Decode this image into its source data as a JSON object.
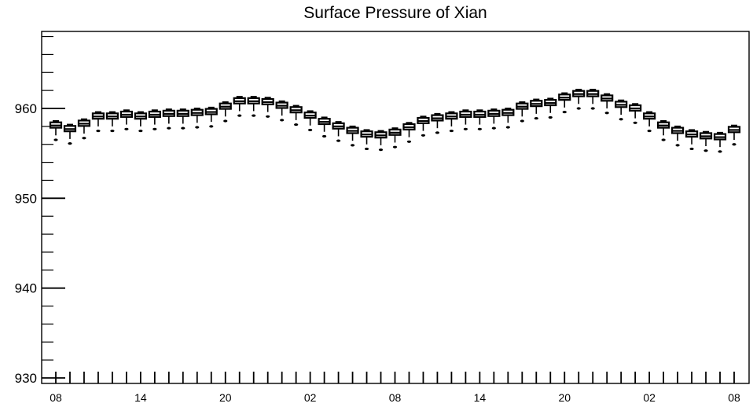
{
  "chart_data": {
    "type": "box",
    "title": "Surface Pressure of Xian",
    "xlabel": "",
    "ylabel": "",
    "ylim": [
      930,
      969
    ],
    "y_major_ticks": [
      930,
      940,
      950,
      960
    ],
    "x_tick_labels": [
      "08",
      "14",
      "20",
      "02",
      "08",
      "14",
      "20",
      "02",
      "08"
    ],
    "x_tick_label_every": 6,
    "grid": false,
    "legend": "none",
    "colors": {
      "box": "#000000",
      "background": "#ffffff"
    },
    "series": [
      {
        "values": [
          958.1,
          957.7,
          958.3,
          959.1,
          959.1,
          959.3,
          959.1,
          959.3,
          959.4,
          959.4,
          959.5,
          959.6,
          960.2,
          960.8,
          960.8,
          960.7,
          960.3,
          959.8,
          959.2,
          958.5,
          958.0,
          957.5,
          957.1,
          957.0,
          957.3,
          957.9,
          958.6,
          958.9,
          959.1,
          959.3,
          959.3,
          959.4,
          959.5,
          960.2,
          960.5,
          960.6,
          961.2,
          961.6,
          961.6,
          961.1,
          960.4,
          960.0,
          959.1,
          958.1,
          957.5,
          957.1,
          956.9,
          956.8,
          957.6
        ]
      }
    ]
  }
}
